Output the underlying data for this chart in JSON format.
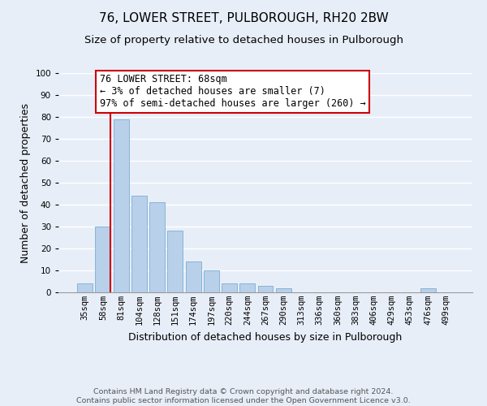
{
  "title": "76, LOWER STREET, PULBOROUGH, RH20 2BW",
  "subtitle": "Size of property relative to detached houses in Pulborough",
  "xlabel": "Distribution of detached houses by size in Pulborough",
  "ylabel": "Number of detached properties",
  "bar_labels": [
    "35sqm",
    "58sqm",
    "81sqm",
    "104sqm",
    "128sqm",
    "151sqm",
    "174sqm",
    "197sqm",
    "220sqm",
    "244sqm",
    "267sqm",
    "290sqm",
    "313sqm",
    "336sqm",
    "360sqm",
    "383sqm",
    "406sqm",
    "429sqm",
    "453sqm",
    "476sqm",
    "499sqm"
  ],
  "bar_heights": [
    4,
    30,
    79,
    44,
    41,
    28,
    14,
    10,
    4,
    4,
    3,
    2,
    0,
    0,
    0,
    0,
    0,
    0,
    0,
    2,
    0
  ],
  "bar_color": "#b8d0ea",
  "bar_edge_color": "#7aafd4",
  "ylim": [
    0,
    100
  ],
  "yticks": [
    0,
    10,
    20,
    30,
    40,
    50,
    60,
    70,
    80,
    90,
    100
  ],
  "red_line_x": 1.42,
  "annotation_text": "76 LOWER STREET: 68sqm\n← 3% of detached houses are smaller (7)\n97% of semi-detached houses are larger (260) →",
  "annotation_box_color": "#ffffff",
  "annotation_box_edge": "#cc0000",
  "footer_line1": "Contains HM Land Registry data © Crown copyright and database right 2024.",
  "footer_line2": "Contains public sector information licensed under the Open Government Licence v3.0.",
  "background_color": "#e8eef8",
  "grid_color": "#ffffff",
  "title_fontsize": 11,
  "subtitle_fontsize": 9.5,
  "axis_label_fontsize": 9,
  "tick_fontsize": 7.5,
  "footer_fontsize": 6.8,
  "annotation_fontsize": 8.5
}
